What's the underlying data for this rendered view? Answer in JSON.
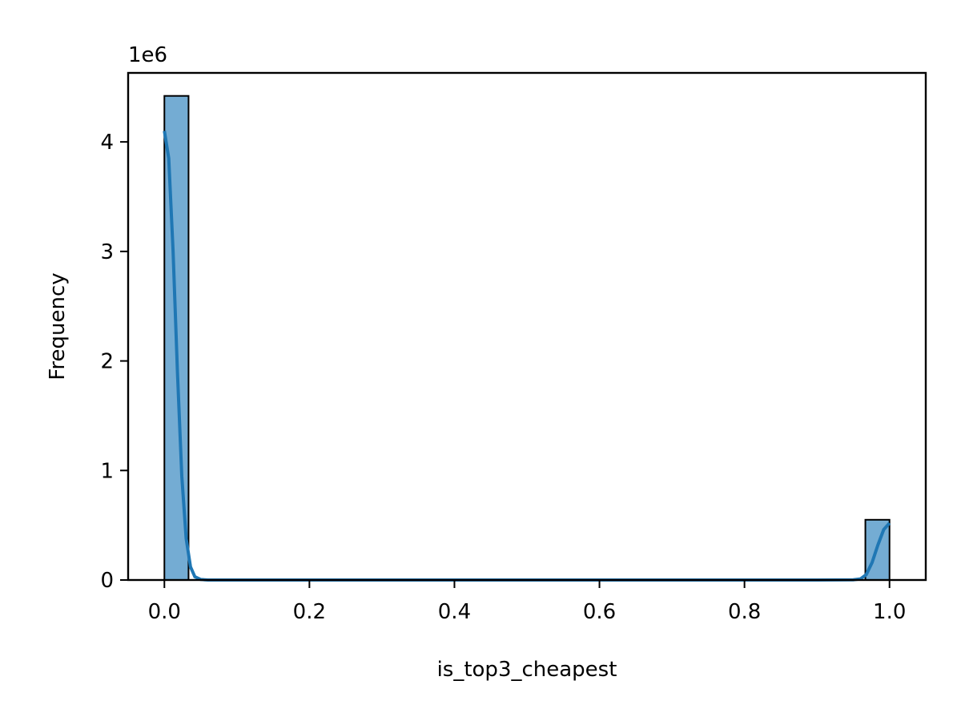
{
  "chart_data": {
    "type": "bar",
    "subtype": "histogram-with-kde",
    "title": "",
    "xlabel": "is_top3_cheapest",
    "ylabel": "Frequency",
    "y_offset_label": "1e6",
    "xlim": [
      -0.05,
      1.05
    ],
    "ylim": [
      0,
      4.63
    ],
    "y_scale_multiplier": 1000000,
    "x_ticks": [
      0.0,
      0.2,
      0.4,
      0.6,
      0.8,
      1.0
    ],
    "x_tick_labels": [
      "0.0",
      "0.2",
      "0.4",
      "0.6",
      "0.8",
      "1.0"
    ],
    "y_ticks": [
      0,
      1,
      2,
      3,
      4
    ],
    "y_tick_labels": [
      "0",
      "1",
      "2",
      "3",
      "4"
    ],
    "bins": [
      {
        "x0": 0.0,
        "x1": 0.0333,
        "value": 4.42
      },
      {
        "x0": 0.9667,
        "x1": 1.0,
        "value": 0.55
      }
    ],
    "kde": {
      "x": [
        0.0,
        0.006,
        0.012,
        0.018,
        0.024,
        0.03,
        0.036,
        0.042,
        0.05,
        0.06,
        0.1,
        0.3,
        0.5,
        0.7,
        0.9,
        0.95,
        0.96,
        0.968,
        0.976,
        0.984,
        0.992,
        1.0
      ],
      "y": [
        4.1,
        3.85,
        3.0,
        1.9,
        0.95,
        0.38,
        0.12,
        0.03,
        0.005,
        0.0,
        0.0,
        0.0,
        0.0,
        0.0,
        0.0,
        0.002,
        0.01,
        0.05,
        0.16,
        0.32,
        0.46,
        0.52
      ]
    },
    "grid": false,
    "legend": "none",
    "colors": {
      "bar_fill": "#74acd3",
      "bar_edge": "#000000",
      "kde_line": "#1f77b4"
    }
  }
}
